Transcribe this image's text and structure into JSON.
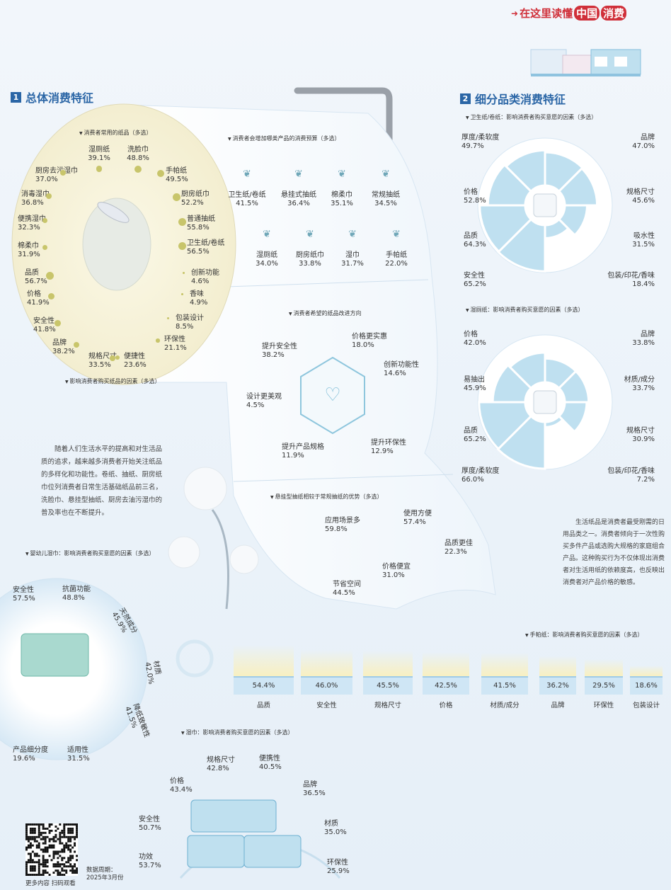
{
  "header": {
    "title_prefix": "在这里读懂",
    "title_highlight": "中国",
    "title_suffix": "消费"
  },
  "section1": {
    "num": "1",
    "title": "总体消费特征"
  },
  "section2": {
    "num": "2",
    "title": "细分品类消费特征"
  },
  "roll_papers": {
    "title": "消费者常用的纸品（多选）",
    "items": [
      {
        "label": "湿厕纸",
        "value": "39.1%"
      },
      {
        "label": "洗脸巾",
        "value": "48.8%"
      },
      {
        "label": "厨房去污湿巾",
        "value": "37.0%"
      },
      {
        "label": "手帕纸",
        "value": "49.5%"
      },
      {
        "label": "消毒湿巾",
        "value": "36.8%"
      },
      {
        "label": "厨房纸巾",
        "value": "52.2%"
      },
      {
        "label": "便携湿巾",
        "value": "32.3%"
      },
      {
        "label": "普通抽纸",
        "value": "55.8%"
      },
      {
        "label": "棉柔巾",
        "value": "31.9%"
      },
      {
        "label": "卫生纸/卷纸",
        "value": "56.5%"
      }
    ]
  },
  "purchase_factors": {
    "title": "影响消费者购买纸品的因素（多选）",
    "items": [
      {
        "label": "品质",
        "value": "56.7%"
      },
      {
        "label": "创新功能",
        "value": "4.6%"
      },
      {
        "label": "价格",
        "value": "41.9%"
      },
      {
        "label": "香味",
        "value": "4.9%"
      },
      {
        "label": "安全性",
        "value": "41.8%"
      },
      {
        "label": "包装设计",
        "value": "8.5%"
      },
      {
        "label": "品牌",
        "value": "38.2%"
      },
      {
        "label": "环保性",
        "value": "21.1%"
      },
      {
        "label": "规格尺寸",
        "value": "33.5%"
      },
      {
        "label": "便捷性",
        "value": "23.6%"
      }
    ]
  },
  "budget": {
    "title": "消费者会增加哪类产品的消费预算（多选）",
    "icon": "leaf-icon",
    "items": [
      {
        "label": "卫生纸/卷纸",
        "value": "41.5%"
      },
      {
        "label": "悬挂式抽纸",
        "value": "36.4%"
      },
      {
        "label": "棉柔巾",
        "value": "35.1%"
      },
      {
        "label": "常规抽纸",
        "value": "34.5%"
      },
      {
        "label": "湿厕纸",
        "value": "34.0%"
      },
      {
        "label": "厨房纸巾",
        "value": "33.8%"
      },
      {
        "label": "湿巾",
        "value": "31.7%"
      },
      {
        "label": "手帕纸",
        "value": "22.0%"
      }
    ]
  },
  "improvements": {
    "title": "消费者希望的纸品改进方向",
    "items": [
      {
        "label": "提升安全性",
        "value": "38.2%"
      },
      {
        "label": "价格更实惠",
        "value": "18.0%"
      },
      {
        "label": "创新功能性",
        "value": "14.6%"
      },
      {
        "label": "设计更美观",
        "value": "4.5%"
      },
      {
        "label": "提升环保性",
        "value": "12.9%"
      },
      {
        "label": "提升产品规格",
        "value": "11.9%"
      }
    ]
  },
  "hanging": {
    "title": "悬挂型抽纸相较于常规抽纸的优势（多选）",
    "items": [
      {
        "label": "应用场景多",
        "value": "59.8%"
      },
      {
        "label": "使用方便",
        "value": "57.4%"
      },
      {
        "label": "品质更佳",
        "value": "22.3%"
      },
      {
        "label": "价格便宜",
        "value": "31.0%"
      },
      {
        "label": "节省空间",
        "value": "44.5%"
      }
    ]
  },
  "intro_text": "随着人们生活水平的提高和对生活品质的追求，越来越多消费者开始关注纸品的多样化和功能性。卷纸、抽纸、厨房纸巾位列消费者日常生活基础纸品前三名，洗脸巾、悬挂型抽纸、厨房去油污湿巾的普及率也在不断提升。",
  "toilet_paper": {
    "title": "卫生纸/卷纸：影响消费者购买意愿的因素（多选）",
    "items": [
      {
        "label": "厚度/柔软度",
        "value": "49.7%"
      },
      {
        "label": "品牌",
        "value": "47.0%"
      },
      {
        "label": "价格",
        "value": "52.8%"
      },
      {
        "label": "规格尺寸",
        "value": "45.6%"
      },
      {
        "label": "品质",
        "value": "64.3%"
      },
      {
        "label": "吸水性",
        "value": "31.5%"
      },
      {
        "label": "安全性",
        "value": "65.2%"
      },
      {
        "label": "包装/印花/香味",
        "value": "18.4%"
      }
    ]
  },
  "wet_toilet_paper": {
    "title": "湿厕纸：影响消费者购买意愿的因素（多选）",
    "items": [
      {
        "label": "价格",
        "value": "42.0%"
      },
      {
        "label": "品牌",
        "value": "33.8%"
      },
      {
        "label": "易抽出",
        "value": "45.9%"
      },
      {
        "label": "材质/成分",
        "value": "33.7%"
      },
      {
        "label": "品质",
        "value": "65.2%"
      },
      {
        "label": "规格尺寸",
        "value": "30.9%"
      },
      {
        "label": "厚度/柔软度",
        "value": "66.0%"
      },
      {
        "label": "包装/印花/香味",
        "value": "7.2%"
      }
    ]
  },
  "summary_text": "生活纸品是消费者最受刚需的日用品类之一。消费者倾向于一次性购买多件产品或选购大规格的家庭组合产品。这种购买行为不仅体现出消费者对生活用纸的依赖度高，也反映出消费者对产品价格的敏感。",
  "handkerchief": {
    "title": "手帕纸：影响消费者购买意愿的因素（多选）",
    "items": [
      {
        "label": "品质",
        "value": "54.4%"
      },
      {
        "label": "安全性",
        "value": "46.0%"
      },
      {
        "label": "规格尺寸",
        "value": "45.5%"
      },
      {
        "label": "价格",
        "value": "42.5%"
      },
      {
        "label": "材质/成分",
        "value": "41.5%"
      },
      {
        "label": "品牌",
        "value": "36.2%"
      },
      {
        "label": "环保性",
        "value": "29.5%"
      },
      {
        "label": "包装设计",
        "value": "18.6%"
      }
    ]
  },
  "baby_wipes": {
    "title": "婴幼儿湿巾：影响消费者购买意愿的因素（多选）",
    "items": [
      {
        "label": "安全性",
        "value": "57.5%"
      },
      {
        "label": "抗菌功能",
        "value": "48.8%"
      },
      {
        "label": "天然成分",
        "value": "45.9%"
      },
      {
        "label": "材质",
        "value": "42.0%"
      },
      {
        "label": "降低致敏性",
        "value": "41.5%"
      },
      {
        "label": "适用性",
        "value": "31.5%"
      },
      {
        "label": "产品细分度",
        "value": "19.6%"
      }
    ]
  },
  "wet_wipes": {
    "title": "湿巾：影响消费者购买意愿的因素（多选）",
    "items": [
      {
        "label": "规格尺寸",
        "value": "42.8%"
      },
      {
        "label": "便携性",
        "value": "40.5%"
      },
      {
        "label": "价格",
        "value": "43.4%"
      },
      {
        "label": "品牌",
        "value": "36.5%"
      },
      {
        "label": "安全性",
        "value": "50.7%"
      },
      {
        "label": "材质",
        "value": "35.0%"
      },
      {
        "label": "功效",
        "value": "53.7%"
      },
      {
        "label": "环保性",
        "value": "25.9%"
      }
    ]
  },
  "footer": {
    "qr_caption": "更多内容 扫码观看",
    "period_label": "数据周期：",
    "period_value": "2025年3月份"
  },
  "colors": {
    "accent": "#2b66a6",
    "header_red": "#d0303a",
    "light_blue": "#cfe6f5",
    "roll_face": "#f7f3dc",
    "dot": "#c8c56b"
  }
}
